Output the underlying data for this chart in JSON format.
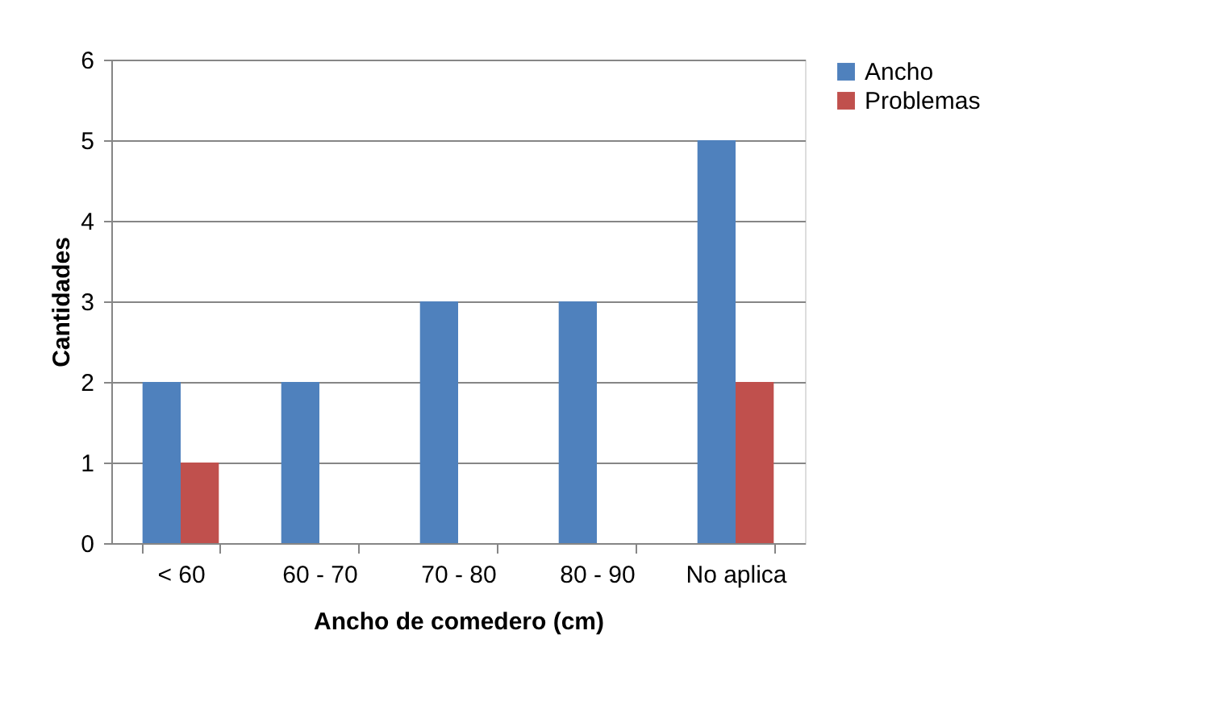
{
  "chart_data": {
    "type": "bar",
    "xlabel": "Ancho de comedero (cm)",
    "ylabel": "Cantidades",
    "categories": [
      "< 60",
      "60 - 70",
      "70 - 80",
      "80 - 90",
      "No aplica"
    ],
    "series": [
      {
        "name": "Ancho",
        "color": "#4f81bd",
        "values": [
          2,
          2,
          3,
          3,
          5
        ]
      },
      {
        "name": "Problemas",
        "color": "#c0504d",
        "values": [
          1,
          null,
          null,
          null,
          2
        ]
      }
    ],
    "ylim": [
      0,
      6
    ],
    "yticks": [
      0,
      1,
      2,
      3,
      4,
      5,
      6
    ],
    "grid": "y",
    "legend": "right"
  }
}
